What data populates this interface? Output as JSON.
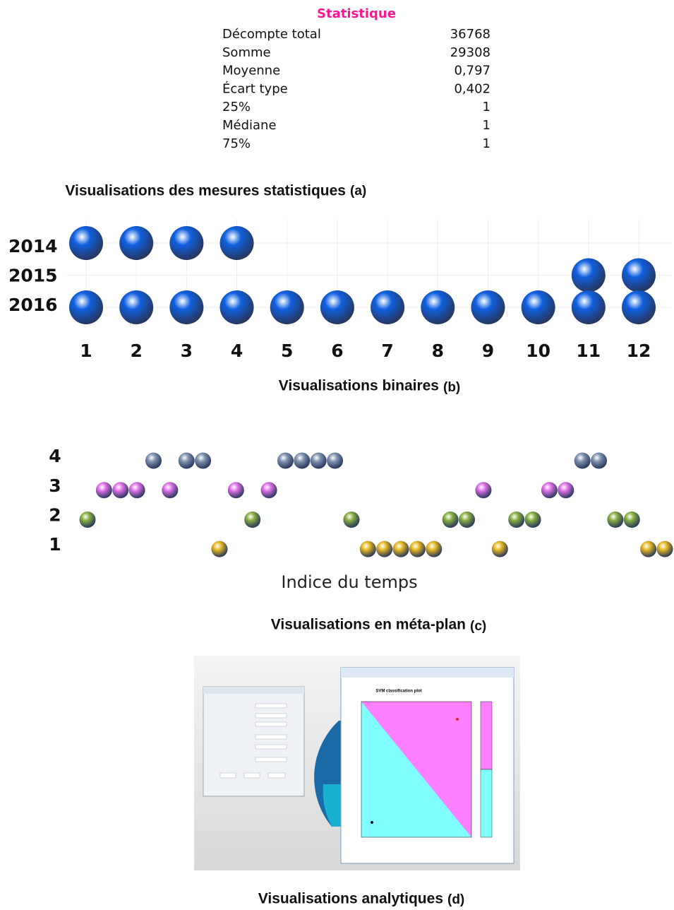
{
  "stats_table": {
    "header": "Statistique",
    "rows": [
      [
        "Décompte total",
        "36768"
      ],
      [
        "Somme",
        "29308"
      ],
      [
        "Moyenne",
        "0,797"
      ],
      [
        "Écart type",
        "0,402"
      ],
      [
        "25%",
        "1"
      ],
      [
        "Médiane",
        "1"
      ],
      [
        "75%",
        "1"
      ]
    ],
    "caption": "Visualisations des mesures statistiques",
    "label": "(a)"
  },
  "chart_data": [
    {
      "type": "binary",
      "caption": "Visualisations binaires",
      "label": "(b)",
      "xlim": [
        0.5,
        12.5
      ],
      "xticks": [
        1,
        2,
        3,
        4,
        5,
        6,
        7,
        8,
        9,
        10,
        11,
        12
      ],
      "color": "#1060e0",
      "grid": true,
      "series": [
        {
          "name": "2014",
          "x": [
            1,
            2,
            3,
            4
          ]
        },
        {
          "name": "2015",
          "x": [
            11,
            12
          ]
        },
        {
          "name": "2016",
          "x": [
            1,
            2,
            3,
            4,
            5,
            6,
            7,
            8,
            9,
            10,
            11,
            12
          ]
        }
      ]
    },
    {
      "type": "metaplan",
      "caption": "Visualisations en méta-plan",
      "label": "(c)",
      "xlabel": "Indice du temps",
      "xlim": [
        0.5,
        36.5
      ],
      "ylim": [
        0.5,
        4.5
      ],
      "yticks": [
        1,
        2,
        3,
        4
      ],
      "series": [
        {
          "y": 4,
          "color": "#7f93b0",
          "x": [
            5,
            7,
            8,
            13,
            14,
            15,
            16,
            31,
            32
          ]
        },
        {
          "y": 3,
          "color": "#e070e8",
          "x": [
            2,
            3,
            4,
            6,
            10,
            12,
            25,
            29,
            30
          ]
        },
        {
          "y": 2,
          "color": "#88b040",
          "x": [
            1,
            11,
            17,
            23,
            24,
            27,
            28,
            33,
            34
          ]
        },
        {
          "y": 1,
          "color": "#e8b820",
          "x": [
            9,
            18,
            19,
            20,
            21,
            22,
            26,
            35,
            36
          ]
        }
      ]
    }
  ],
  "screenshot": {
    "plot_title": "SVM classification plot",
    "caption": "Visualisations analytiques",
    "label": "(d)"
  }
}
